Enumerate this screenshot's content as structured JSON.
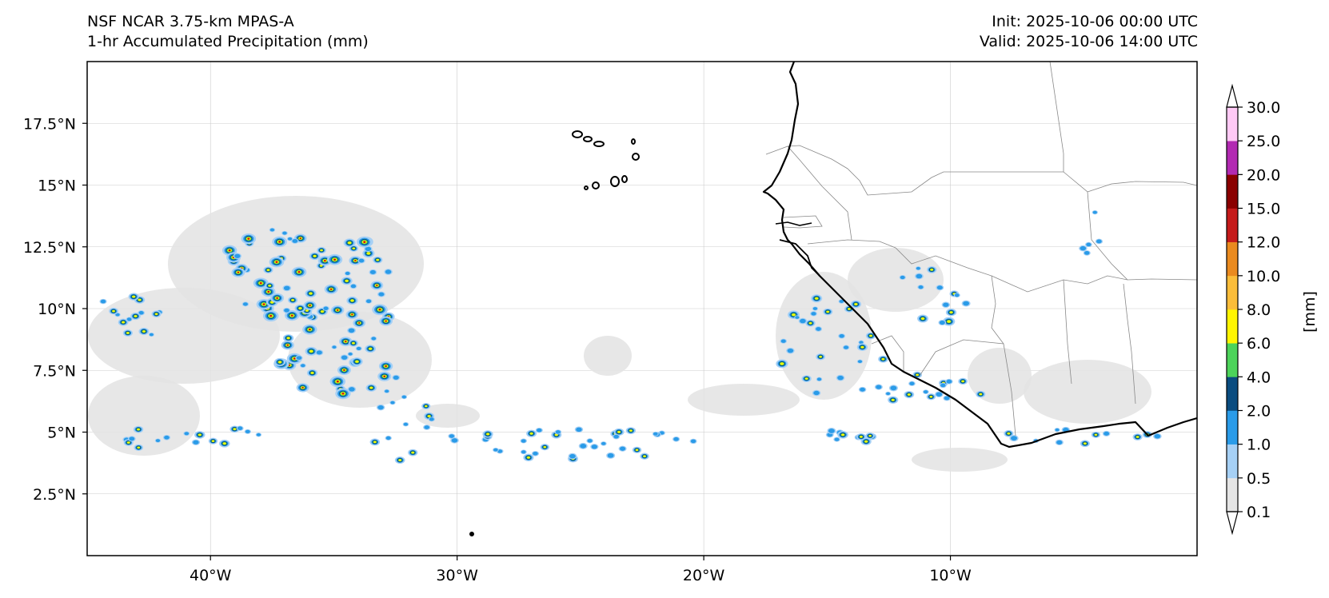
{
  "header": {
    "title_line1": "NSF NCAR 3.75-km MPAS-A",
    "title_line2": "1-hr Accumulated Precipitation (mm)",
    "init_label": "Init: 2025-10-06 00:00 UTC",
    "valid_label": "Valid: 2025-10-06 14:00 UTC"
  },
  "map": {
    "lon_range": [
      -45,
      0
    ],
    "lat_range": [
      0,
      20
    ],
    "lon_ticks": [
      -40,
      -30,
      -20,
      -10
    ],
    "lon_tick_labels": [
      "40°W",
      "30°W",
      "20°W",
      "10°W"
    ],
    "lat_ticks": [
      2.5,
      5,
      7.5,
      10,
      12.5,
      15,
      17.5
    ],
    "lat_tick_labels": [
      "2.5°N",
      "5°N",
      "7.5°N",
      "10°N",
      "12.5°N",
      "15°N",
      "17.5°N"
    ],
    "colors": {
      "coastline": "#000000",
      "borders": "#888888",
      "grid": "#cccccc",
      "trace": "#e3e3e3",
      "light_blue": "#a6d0f5",
      "blue": "#2a9be8",
      "dark_blue": "#0a4c80",
      "green": "#4cd35a",
      "yellow": "#fff500",
      "red": "#d01010"
    }
  },
  "colorbar": {
    "unit_label": "[mm]",
    "levels": [
      0.1,
      0.5,
      1.0,
      2.0,
      4.0,
      6.0,
      8.0,
      10.0,
      12.0,
      15.0,
      20.0,
      25.0,
      30.0
    ],
    "level_labels": [
      "0.1",
      "0.5",
      "1.0",
      "2.0",
      "4.0",
      "6.0",
      "8.0",
      "10.0",
      "12.0",
      "15.0",
      "20.0",
      "25.0",
      "30.0"
    ],
    "colors": [
      "#e5e5e5",
      "#a6d0f5",
      "#2a9be8",
      "#0a4c80",
      "#4cd35a",
      "#fff500",
      "#fbbd3a",
      "#ea8a1f",
      "#c51a1a",
      "#8a0000",
      "#b22ab2",
      "#ffc9f5"
    ],
    "under_color": "#ffffff",
    "over_color": "#ffffff"
  }
}
